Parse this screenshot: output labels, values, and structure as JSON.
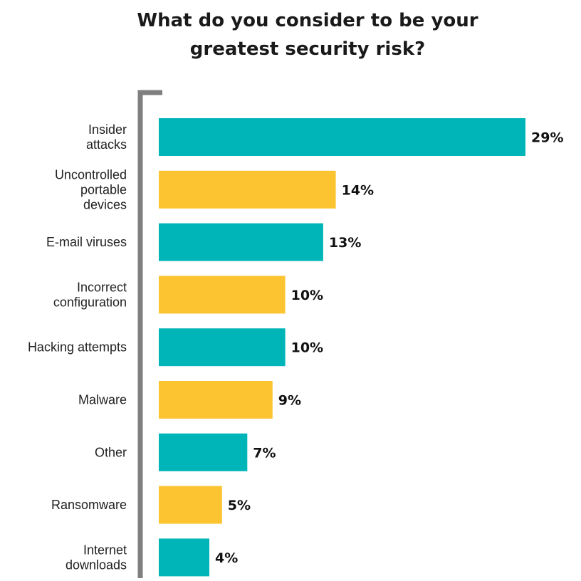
{
  "chart_data": {
    "type": "bar",
    "orientation": "horizontal",
    "title": "What do you consider to be your greatest security risk?",
    "title_lines": [
      "What do you consider to be your",
      "greatest security risk?"
    ],
    "categories": [
      "Insider attacks",
      "Uncontrolled portable devices",
      "E-mail viruses",
      "Incorrect configuration",
      "Hacking attempts",
      "Malware",
      "Other",
      "Ransomware",
      "Internet downloads"
    ],
    "category_lines": [
      [
        "Insider",
        "attacks"
      ],
      [
        "Uncontrolled",
        "portable",
        "devices"
      ],
      [
        "E-mail viruses"
      ],
      [
        "Incorrect",
        "configuration"
      ],
      [
        "Hacking attempts"
      ],
      [
        "Malware"
      ],
      [
        "Other"
      ],
      [
        "Ransomware"
      ],
      [
        "Internet",
        "downloads"
      ]
    ],
    "values": [
      29,
      14,
      13,
      10,
      10,
      9,
      7,
      5,
      4
    ],
    "value_labels": [
      "29%",
      "14%",
      "13%",
      "10%",
      "10%",
      "9%",
      "7%",
      "5%",
      "4%"
    ],
    "unit": "%",
    "xlim": [
      0,
      29
    ],
    "grid": false,
    "legend": "none",
    "colors": [
      "#00b5b8",
      "#fcc431"
    ]
  }
}
